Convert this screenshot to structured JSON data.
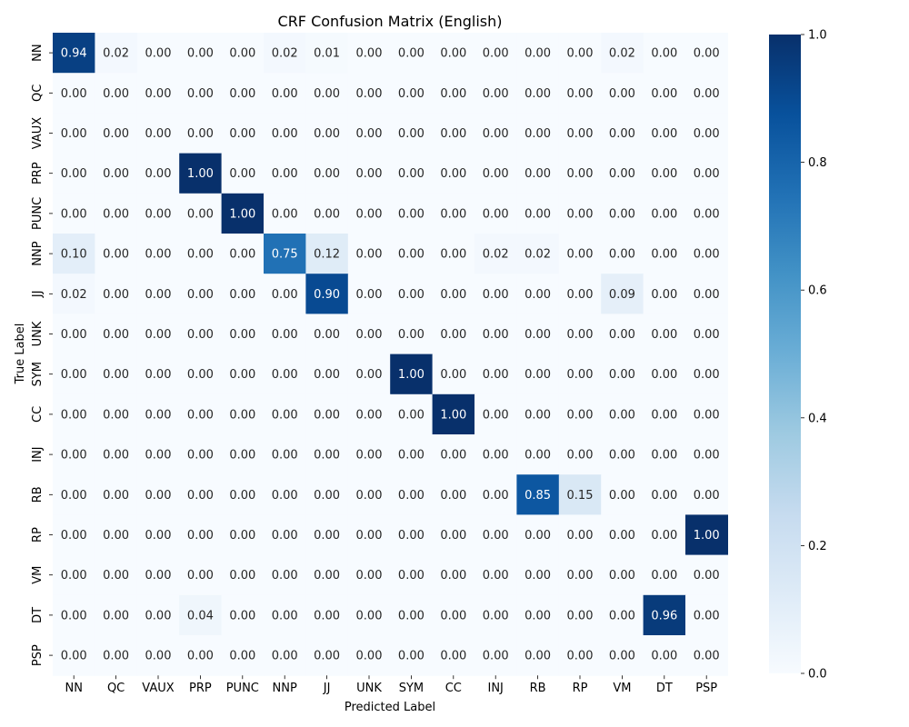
{
  "chart_data": {
    "type": "heatmap",
    "title": "CRF Confusion Matrix (English)",
    "xlabel": "Predicted Label",
    "ylabel": "True Label",
    "x_categories": [
      "NN",
      "QC",
      "VAUX",
      "PRP",
      "PUNC",
      "NNP",
      "JJ",
      "UNK",
      "SYM",
      "CC",
      "INJ",
      "RB",
      "RP",
      "VM",
      "DT",
      "PSP"
    ],
    "y_categories": [
      "NN",
      "QC",
      "VAUX",
      "PRP",
      "PUNC",
      "NNP",
      "JJ",
      "UNK",
      "SYM",
      "CC",
      "INJ",
      "RB",
      "RP",
      "VM",
      "DT",
      "PSP"
    ],
    "values": [
      [
        0.94,
        0.02,
        0.0,
        0.0,
        0.0,
        0.02,
        0.01,
        0.0,
        0.0,
        0.0,
        0.0,
        0.0,
        0.0,
        0.02,
        0.0,
        0.0
      ],
      [
        0.0,
        0.0,
        0.0,
        0.0,
        0.0,
        0.0,
        0.0,
        0.0,
        0.0,
        0.0,
        0.0,
        0.0,
        0.0,
        0.0,
        0.0,
        0.0
      ],
      [
        0.0,
        0.0,
        0.0,
        0.0,
        0.0,
        0.0,
        0.0,
        0.0,
        0.0,
        0.0,
        0.0,
        0.0,
        0.0,
        0.0,
        0.0,
        0.0
      ],
      [
        0.0,
        0.0,
        0.0,
        1.0,
        0.0,
        0.0,
        0.0,
        0.0,
        0.0,
        0.0,
        0.0,
        0.0,
        0.0,
        0.0,
        0.0,
        0.0
      ],
      [
        0.0,
        0.0,
        0.0,
        0.0,
        1.0,
        0.0,
        0.0,
        0.0,
        0.0,
        0.0,
        0.0,
        0.0,
        0.0,
        0.0,
        0.0,
        0.0
      ],
      [
        0.1,
        0.0,
        0.0,
        0.0,
        0.0,
        0.75,
        0.12,
        0.0,
        0.0,
        0.0,
        0.02,
        0.02,
        0.0,
        0.0,
        0.0,
        0.0
      ],
      [
        0.02,
        0.0,
        0.0,
        0.0,
        0.0,
        0.0,
        0.9,
        0.0,
        0.0,
        0.0,
        0.0,
        0.0,
        0.0,
        0.09,
        0.0,
        0.0
      ],
      [
        0.0,
        0.0,
        0.0,
        0.0,
        0.0,
        0.0,
        0.0,
        0.0,
        0.0,
        0.0,
        0.0,
        0.0,
        0.0,
        0.0,
        0.0,
        0.0
      ],
      [
        0.0,
        0.0,
        0.0,
        0.0,
        0.0,
        0.0,
        0.0,
        0.0,
        1.0,
        0.0,
        0.0,
        0.0,
        0.0,
        0.0,
        0.0,
        0.0
      ],
      [
        0.0,
        0.0,
        0.0,
        0.0,
        0.0,
        0.0,
        0.0,
        0.0,
        0.0,
        1.0,
        0.0,
        0.0,
        0.0,
        0.0,
        0.0,
        0.0
      ],
      [
        0.0,
        0.0,
        0.0,
        0.0,
        0.0,
        0.0,
        0.0,
        0.0,
        0.0,
        0.0,
        0.0,
        0.0,
        0.0,
        0.0,
        0.0,
        0.0
      ],
      [
        0.0,
        0.0,
        0.0,
        0.0,
        0.0,
        0.0,
        0.0,
        0.0,
        0.0,
        0.0,
        0.0,
        0.85,
        0.15,
        0.0,
        0.0,
        0.0
      ],
      [
        0.0,
        0.0,
        0.0,
        0.0,
        0.0,
        0.0,
        0.0,
        0.0,
        0.0,
        0.0,
        0.0,
        0.0,
        0.0,
        0.0,
        0.0,
        1.0
      ],
      [
        0.0,
        0.0,
        0.0,
        0.0,
        0.0,
        0.0,
        0.0,
        0.0,
        0.0,
        0.0,
        0.0,
        0.0,
        0.0,
        0.0,
        0.0,
        0.0
      ],
      [
        0.0,
        0.0,
        0.0,
        0.04,
        0.0,
        0.0,
        0.0,
        0.0,
        0.0,
        0.0,
        0.0,
        0.0,
        0.0,
        0.0,
        0.96,
        0.0
      ],
      [
        0.0,
        0.0,
        0.0,
        0.0,
        0.0,
        0.0,
        0.0,
        0.0,
        0.0,
        0.0,
        0.0,
        0.0,
        0.0,
        0.0,
        0.0,
        0.0
      ]
    ],
    "value_format": "0.00",
    "colormap": "Blues",
    "color_range": [
      0.0,
      1.0
    ],
    "colorbar": {
      "placement": "right",
      "ticks": [
        0.0,
        0.2,
        0.4,
        0.6,
        0.8,
        1.0
      ],
      "tick_labels": [
        "0.0",
        "0.2",
        "0.4",
        "0.6",
        "0.8",
        "1.0"
      ]
    },
    "grid": false
  }
}
